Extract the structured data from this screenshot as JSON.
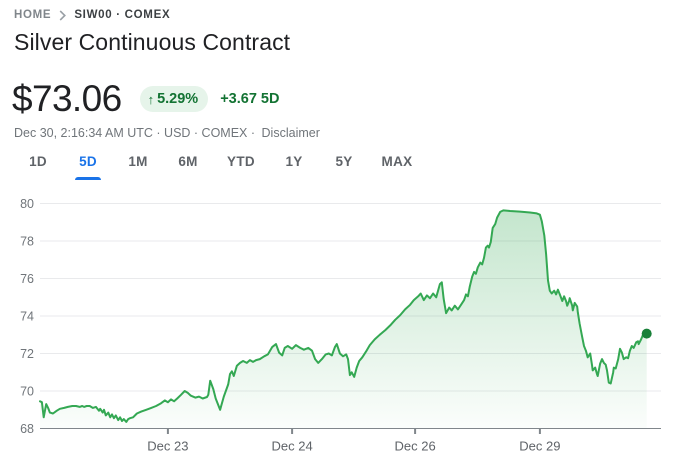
{
  "breadcrumb": {
    "home": "HOME",
    "symbol": "SIW00 · COMEX"
  },
  "title": "Silver Continuous Contract",
  "quote": {
    "price": "$73.06",
    "change_arrow": "↑",
    "change_percent": "5.29%",
    "change_abs": "+3.67 5D",
    "meta": "Dec 30, 2:16:34 AM UTC · USD · COMEX ·",
    "disclaimer": "Disclaimer"
  },
  "tabs": [
    {
      "label": "1D",
      "selected": false
    },
    {
      "label": "5D",
      "selected": true
    },
    {
      "label": "1M",
      "selected": false
    },
    {
      "label": "6M",
      "selected": false
    },
    {
      "label": "YTD",
      "selected": false
    },
    {
      "label": "1Y",
      "selected": false
    },
    {
      "label": "5Y",
      "selected": false
    },
    {
      "label": "MAX",
      "selected": false
    }
  ],
  "colors": {
    "accent_blue": "#1a73e8",
    "chart_green": "#34a853",
    "chart_green_dark": "#188038",
    "badge_bg": "#e6f4ea",
    "badge_text": "#137333",
    "text_primary": "#202124",
    "text_secondary": "#5f6368",
    "label_gray": "#70757a",
    "gridline": "#e9eaec",
    "axis_line": "#80868b"
  },
  "chart_data": {
    "type": "area",
    "title": "Silver Continuous Contract, 5-day price",
    "xlabel": "",
    "ylabel": "",
    "ylim": [
      68,
      80.9
    ],
    "grid": true,
    "y_ticks": [
      68,
      70,
      72,
      74,
      76,
      78,
      80
    ],
    "x_ticks": [
      {
        "label": "Dec 23",
        "f": 0.206
      },
      {
        "label": "Dec 24",
        "f": 0.406
      },
      {
        "label": "Dec 26",
        "f": 0.604
      },
      {
        "label": "Dec 29",
        "f": 0.805
      }
    ],
    "last_point": {
      "f": 0.977,
      "value": 73.06
    },
    "points": [
      [
        0.0,
        69.45
      ],
      [
        0.003,
        69.4
      ],
      [
        0.006,
        68.6
      ],
      [
        0.01,
        69.3
      ],
      [
        0.013,
        69.1
      ],
      [
        0.016,
        68.85
      ],
      [
        0.021,
        68.8
      ],
      [
        0.027,
        68.95
      ],
      [
        0.032,
        69.05
      ],
      [
        0.039,
        69.1
      ],
      [
        0.045,
        69.15
      ],
      [
        0.052,
        69.2
      ],
      [
        0.058,
        69.2
      ],
      [
        0.064,
        69.15
      ],
      [
        0.068,
        69.2
      ],
      [
        0.071,
        69.15
      ],
      [
        0.075,
        69.2
      ],
      [
        0.08,
        69.2
      ],
      [
        0.085,
        69.1
      ],
      [
        0.09,
        69.15
      ],
      [
        0.095,
        68.95
      ],
      [
        0.097,
        69.05
      ],
      [
        0.101,
        68.85
      ],
      [
        0.103,
        69.0
      ],
      [
        0.106,
        68.7
      ],
      [
        0.11,
        68.85
      ],
      [
        0.113,
        68.6
      ],
      [
        0.116,
        68.75
      ],
      [
        0.119,
        68.55
      ],
      [
        0.122,
        68.7
      ],
      [
        0.126,
        68.45
      ],
      [
        0.129,
        68.6
      ],
      [
        0.132,
        68.4
      ],
      [
        0.135,
        68.5
      ],
      [
        0.139,
        68.35
      ],
      [
        0.142,
        68.5
      ],
      [
        0.145,
        68.55
      ],
      [
        0.15,
        68.6
      ],
      [
        0.156,
        68.8
      ],
      [
        0.163,
        68.9
      ],
      [
        0.171,
        69.0
      ],
      [
        0.179,
        69.1
      ],
      [
        0.187,
        69.2
      ],
      [
        0.195,
        69.35
      ],
      [
        0.201,
        69.5
      ],
      [
        0.206,
        69.4
      ],
      [
        0.211,
        69.55
      ],
      [
        0.216,
        69.45
      ],
      [
        0.221,
        69.6
      ],
      [
        0.227,
        69.8
      ],
      [
        0.233,
        70.0
      ],
      [
        0.238,
        69.9
      ],
      [
        0.243,
        69.75
      ],
      [
        0.25,
        69.65
      ],
      [
        0.256,
        69.7
      ],
      [
        0.262,
        69.6
      ],
      [
        0.269,
        69.68
      ],
      [
        0.271,
        69.8
      ],
      [
        0.274,
        70.55
      ],
      [
        0.279,
        70.1
      ],
      [
        0.283,
        69.6
      ],
      [
        0.29,
        69.0
      ],
      [
        0.296,
        69.7
      ],
      [
        0.303,
        70.35
      ],
      [
        0.306,
        70.9
      ],
      [
        0.309,
        71.05
      ],
      [
        0.312,
        70.8
      ],
      [
        0.317,
        71.35
      ],
      [
        0.322,
        71.5
      ],
      [
        0.327,
        71.6
      ],
      [
        0.333,
        71.5
      ],
      [
        0.338,
        71.65
      ],
      [
        0.343,
        71.55
      ],
      [
        0.348,
        71.65
      ],
      [
        0.354,
        71.7
      ],
      [
        0.361,
        71.85
      ],
      [
        0.367,
        71.95
      ],
      [
        0.374,
        72.35
      ],
      [
        0.38,
        72.5
      ],
      [
        0.385,
        72.05
      ],
      [
        0.39,
        71.9
      ],
      [
        0.394,
        72.3
      ],
      [
        0.399,
        72.4
      ],
      [
        0.406,
        72.25
      ],
      [
        0.412,
        72.45
      ],
      [
        0.419,
        72.3
      ],
      [
        0.425,
        72.2
      ],
      [
        0.432,
        72.3
      ],
      [
        0.438,
        72.15
      ],
      [
        0.443,
        71.7
      ],
      [
        0.448,
        71.5
      ],
      [
        0.454,
        71.7
      ],
      [
        0.46,
        71.95
      ],
      [
        0.465,
        72.0
      ],
      [
        0.47,
        71.9
      ],
      [
        0.475,
        72.35
      ],
      [
        0.478,
        72.5
      ],
      [
        0.483,
        72.0
      ],
      [
        0.488,
        71.85
      ],
      [
        0.493,
        71.95
      ],
      [
        0.496,
        71.7
      ],
      [
        0.499,
        70.85
      ],
      [
        0.502,
        71.0
      ],
      [
        0.506,
        70.75
      ],
      [
        0.51,
        71.25
      ],
      [
        0.514,
        71.6
      ],
      [
        0.519,
        71.8
      ],
      [
        0.525,
        72.1
      ],
      [
        0.531,
        72.45
      ],
      [
        0.539,
        72.75
      ],
      [
        0.547,
        73.0
      ],
      [
        0.556,
        73.25
      ],
      [
        0.564,
        73.5
      ],
      [
        0.572,
        73.8
      ],
      [
        0.58,
        74.05
      ],
      [
        0.588,
        74.35
      ],
      [
        0.596,
        74.6
      ],
      [
        0.602,
        74.85
      ],
      [
        0.609,
        75.05
      ],
      [
        0.613,
        75.2
      ],
      [
        0.618,
        74.85
      ],
      [
        0.623,
        75.1
      ],
      [
        0.628,
        74.95
      ],
      [
        0.633,
        75.2
      ],
      [
        0.638,
        75.0
      ],
      [
        0.644,
        75.7
      ],
      [
        0.647,
        75.8
      ],
      [
        0.65,
        74.9
      ],
      [
        0.654,
        74.15
      ],
      [
        0.659,
        74.45
      ],
      [
        0.663,
        74.3
      ],
      [
        0.668,
        74.55
      ],
      [
        0.673,
        74.35
      ],
      [
        0.678,
        74.6
      ],
      [
        0.683,
        74.85
      ],
      [
        0.686,
        75.15
      ],
      [
        0.689,
        75.05
      ],
      [
        0.692,
        75.55
      ],
      [
        0.696,
        76.1
      ],
      [
        0.699,
        76.35
      ],
      [
        0.702,
        76.25
      ],
      [
        0.705,
        76.6
      ],
      [
        0.709,
        76.85
      ],
      [
        0.712,
        76.75
      ],
      [
        0.715,
        77.1
      ],
      [
        0.718,
        77.65
      ],
      [
        0.721,
        77.75
      ],
      [
        0.723,
        77.65
      ],
      [
        0.726,
        77.95
      ],
      [
        0.729,
        78.7
      ],
      [
        0.733,
        78.9
      ],
      [
        0.736,
        79.25
      ],
      [
        0.741,
        79.55
      ],
      [
        0.746,
        79.63
      ],
      [
        0.757,
        79.6
      ],
      [
        0.773,
        79.57
      ],
      [
        0.789,
        79.52
      ],
      [
        0.8,
        79.47
      ],
      [
        0.805,
        79.4
      ],
      [
        0.808,
        79.05
      ],
      [
        0.812,
        78.3
      ],
      [
        0.815,
        77.3
      ],
      [
        0.818,
        75.9
      ],
      [
        0.821,
        75.35
      ],
      [
        0.824,
        75.2
      ],
      [
        0.828,
        75.35
      ],
      [
        0.831,
        75.15
      ],
      [
        0.834,
        75.4
      ],
      [
        0.837,
        75.15
      ],
      [
        0.841,
        74.8
      ],
      [
        0.844,
        75.05
      ],
      [
        0.847,
        74.8
      ],
      [
        0.849,
        74.55
      ],
      [
        0.852,
        74.8
      ],
      [
        0.853,
        74.95
      ],
      [
        0.857,
        74.55
      ],
      [
        0.858,
        74.3
      ],
      [
        0.861,
        74.7
      ],
      [
        0.865,
        74.5
      ],
      [
        0.866,
        74.2
      ],
      [
        0.869,
        73.6
      ],
      [
        0.873,
        72.9
      ],
      [
        0.876,
        72.4
      ],
      [
        0.879,
        72.15
      ],
      [
        0.882,
        71.8
      ],
      [
        0.886,
        72.0
      ],
      [
        0.889,
        71.35
      ],
      [
        0.89,
        71.1
      ],
      [
        0.894,
        71.25
      ],
      [
        0.897,
        70.9
      ],
      [
        0.898,
        70.8
      ],
      [
        0.902,
        71.45
      ],
      [
        0.905,
        71.7
      ],
      [
        0.908,
        71.5
      ],
      [
        0.911,
        71.4
      ],
      [
        0.913,
        71.1
      ],
      [
        0.916,
        70.45
      ],
      [
        0.919,
        70.4
      ],
      [
        0.923,
        71.0
      ],
      [
        0.924,
        71.25
      ],
      [
        0.927,
        71.2
      ],
      [
        0.931,
        71.7
      ],
      [
        0.934,
        72.25
      ],
      [
        0.937,
        72.05
      ],
      [
        0.94,
        71.7
      ],
      [
        0.944,
        71.8
      ],
      [
        0.947,
        71.75
      ],
      [
        0.95,
        72.15
      ],
      [
        0.953,
        72.4
      ],
      [
        0.956,
        72.3
      ],
      [
        0.96,
        72.6
      ],
      [
        0.963,
        72.65
      ],
      [
        0.964,
        72.5
      ],
      [
        0.968,
        72.75
      ],
      [
        0.971,
        73.0
      ],
      [
        0.974,
        72.95
      ],
      [
        0.977,
        73.06
      ]
    ]
  }
}
